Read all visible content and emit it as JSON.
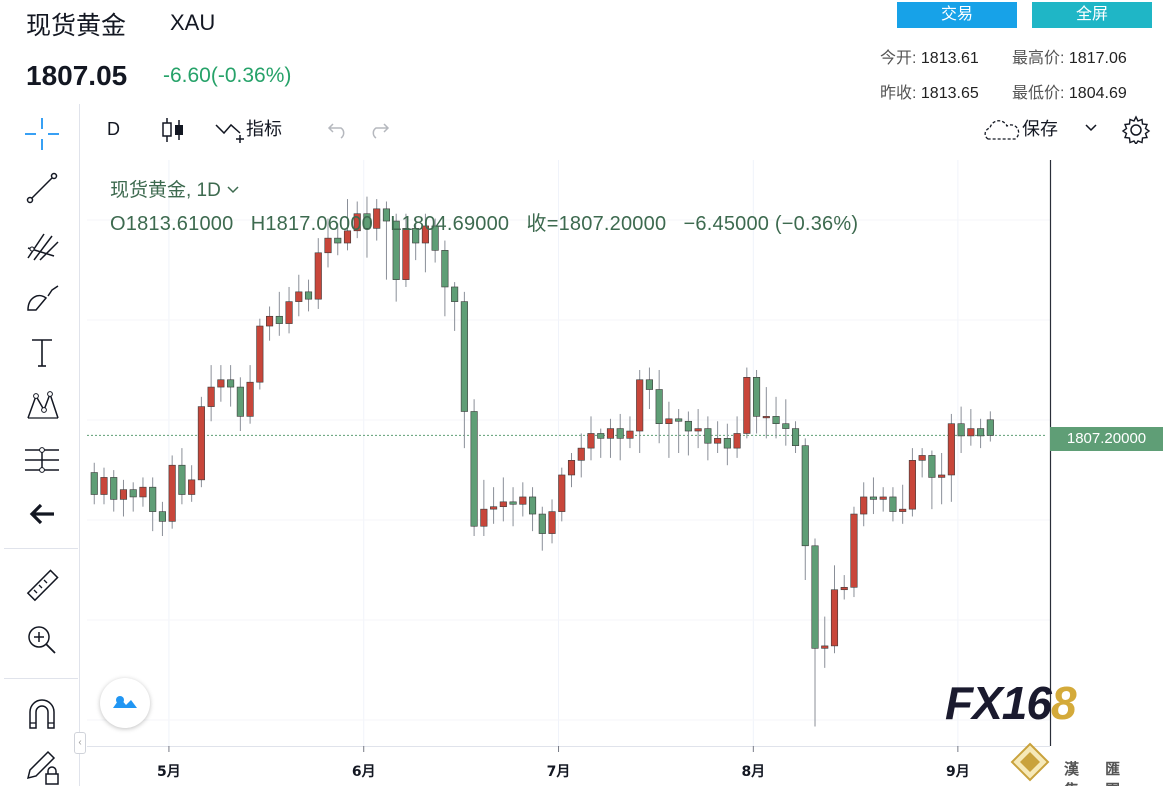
{
  "header": {
    "name": "现货黄金",
    "symbol": "XAU",
    "price": "1807.05",
    "change": "-6.60(-0.36%)",
    "trade_button": "交易",
    "fullscreen_button": "全屏",
    "stats": {
      "open_label": "今开:",
      "open": "1813.61",
      "high_label": "最高价:",
      "high": "1817.06",
      "prev_close_label": "昨收:",
      "prev_close": "1813.65",
      "low_label": "最低价:",
      "low": "1804.69"
    }
  },
  "toolbar": {
    "interval": "D",
    "indicators_label": "指标",
    "save_label": "保存"
  },
  "legend": {
    "title": "现货黄金, 1D",
    "ohlc": "O1813.61000   H1817.06000   L1804.69000   收=1807.20000   −6.45000 (−0.36%)"
  },
  "price_tag": "1807.20000",
  "watermark": {
    "logo_main": "FX16",
    "logo_end": "8",
    "group": "漢 匯 集 團"
  },
  "colors": {
    "up": "#c8463a",
    "down": "#5f9e76",
    "accent": "#17a2e8"
  },
  "icons": [
    "crosshair-icon",
    "trend-line-icon",
    "pitchfork-icon",
    "brush-icon",
    "text-icon",
    "pattern-icon",
    "prediction-icon",
    "back-arrow-icon",
    "ruler-icon",
    "zoom-in-icon",
    "magnet-icon",
    "lock-pencil-icon",
    "candle-icon",
    "indicator-icon",
    "undo-icon",
    "redo-icon",
    "cloud-icon",
    "chevron-down-icon",
    "gear-icon"
  ],
  "chart_data": {
    "type": "candlestick",
    "x_ticks": [
      "5月",
      "6月",
      "7月",
      "8月",
      "9月"
    ],
    "ylim": [
      1680,
      1920
    ],
    "last_close": 1807.2,
    "candles": [
      [
        1792,
        1783,
        1796,
        1779
      ],
      [
        1783,
        1790,
        1794,
        1779
      ],
      [
        1790,
        1781,
        1793,
        1776
      ],
      [
        1781,
        1785,
        1789,
        1774
      ],
      [
        1785,
        1782,
        1788,
        1776
      ],
      [
        1782,
        1786,
        1790,
        1778
      ],
      [
        1786,
        1776,
        1790,
        1768
      ],
      [
        1776,
        1772,
        1780,
        1766
      ],
      [
        1772,
        1795,
        1799,
        1769
      ],
      [
        1795,
        1783,
        1802,
        1779
      ],
      [
        1783,
        1789,
        1795,
        1780
      ],
      [
        1789,
        1819,
        1823,
        1786
      ],
      [
        1819,
        1827,
        1836,
        1813
      ],
      [
        1827,
        1830,
        1836,
        1821
      ],
      [
        1830,
        1827,
        1836,
        1819
      ],
      [
        1827,
        1815,
        1831,
        1809
      ],
      [
        1815,
        1829,
        1836,
        1812
      ],
      [
        1829,
        1852,
        1855,
        1826
      ],
      [
        1852,
        1856,
        1860,
        1846
      ],
      [
        1856,
        1853,
        1866,
        1848
      ],
      [
        1853,
        1862,
        1868,
        1849
      ],
      [
        1862,
        1866,
        1873,
        1856
      ],
      [
        1866,
        1863,
        1871,
        1858
      ],
      [
        1863,
        1882,
        1888,
        1859
      ],
      [
        1882,
        1888,
        1896,
        1876
      ],
      [
        1888,
        1886,
        1894,
        1881
      ],
      [
        1886,
        1891,
        1904,
        1883
      ],
      [
        1891,
        1898,
        1903,
        1888
      ],
      [
        1898,
        1892,
        1905,
        1880
      ],
      [
        1892,
        1900,
        1904,
        1887
      ],
      [
        1900,
        1895,
        1903,
        1871
      ],
      [
        1895,
        1871,
        1898,
        1862
      ],
      [
        1871,
        1892,
        1898,
        1868
      ],
      [
        1892,
        1886,
        1896,
        1879
      ],
      [
        1886,
        1893,
        1898,
        1874
      ],
      [
        1893,
        1883,
        1896,
        1878
      ],
      [
        1883,
        1868,
        1887,
        1856
      ],
      [
        1868,
        1862,
        1870,
        1850
      ],
      [
        1862,
        1817,
        1866,
        1802
      ],
      [
        1817,
        1770,
        1822,
        1766
      ],
      [
        1770,
        1777,
        1789,
        1766
      ],
      [
        1777,
        1778,
        1786,
        1771
      ],
      [
        1778,
        1780,
        1790,
        1772
      ],
      [
        1780,
        1779,
        1786,
        1770
      ],
      [
        1779,
        1782,
        1788,
        1774
      ],
      [
        1782,
        1775,
        1786,
        1768
      ],
      [
        1775,
        1767,
        1778,
        1760
      ],
      [
        1767,
        1776,
        1781,
        1763
      ],
      [
        1776,
        1791,
        1794,
        1772
      ],
      [
        1791,
        1797,
        1800,
        1786
      ],
      [
        1797,
        1802,
        1808,
        1790
      ],
      [
        1802,
        1808,
        1815,
        1797
      ],
      [
        1808,
        1806,
        1810,
        1798
      ],
      [
        1806,
        1810,
        1814,
        1798
      ],
      [
        1810,
        1806,
        1816,
        1797
      ],
      [
        1806,
        1809,
        1815,
        1802
      ],
      [
        1809,
        1830,
        1834,
        1800
      ],
      [
        1830,
        1826,
        1835,
        1818
      ],
      [
        1826,
        1812,
        1834,
        1804
      ],
      [
        1812,
        1814,
        1821,
        1798
      ],
      [
        1814,
        1813,
        1818,
        1800
      ],
      [
        1813,
        1809,
        1817,
        1799
      ],
      [
        1809,
        1810,
        1818,
        1802
      ],
      [
        1810,
        1804,
        1815,
        1797
      ],
      [
        1804,
        1806,
        1813,
        1800
      ],
      [
        1806,
        1802,
        1812,
        1795
      ],
      [
        1802,
        1808,
        1815,
        1798
      ],
      [
        1808,
        1831,
        1835,
        1806
      ],
      [
        1831,
        1815,
        1834,
        1808
      ],
      [
        1815,
        1815,
        1827,
        1806
      ],
      [
        1815,
        1812,
        1823,
        1806
      ],
      [
        1812,
        1810,
        1822,
        1803
      ],
      [
        1810,
        1803,
        1813,
        1800
      ],
      [
        1803,
        1762,
        1806,
        1748
      ],
      [
        1762,
        1720,
        1765,
        1688
      ],
      [
        1720,
        1721,
        1733,
        1712
      ],
      [
        1721,
        1744,
        1754,
        1718
      ],
      [
        1744,
        1745,
        1750,
        1740
      ],
      [
        1745,
        1775,
        1778,
        1741
      ],
      [
        1775,
        1782,
        1788,
        1770
      ],
      [
        1782,
        1781,
        1790,
        1775
      ],
      [
        1781,
        1782,
        1786,
        1776
      ],
      [
        1782,
        1776,
        1786,
        1772
      ],
      [
        1776,
        1777,
        1787,
        1771
      ],
      [
        1777,
        1797,
        1802,
        1774
      ],
      [
        1797,
        1799,
        1802,
        1790
      ],
      [
        1799,
        1790,
        1801,
        1777
      ],
      [
        1790,
        1791,
        1800,
        1779
      ],
      [
        1791,
        1812,
        1816,
        1780
      ],
      [
        1812,
        1807,
        1819,
        1800
      ],
      [
        1807,
        1810,
        1818,
        1803
      ],
      [
        1810,
        1807,
        1814,
        1802
      ],
      [
        1813.61,
        1807.2,
        1817.06,
        1804.69
      ]
    ]
  }
}
